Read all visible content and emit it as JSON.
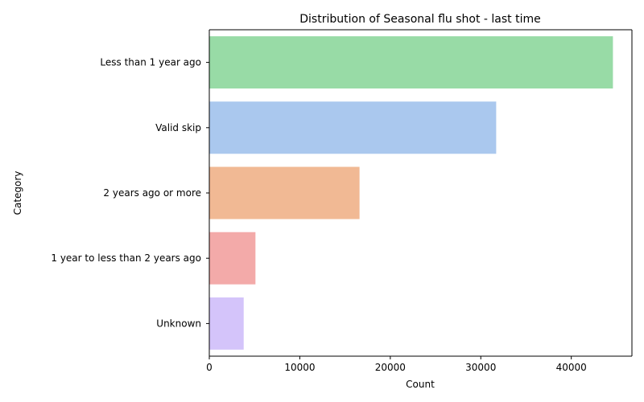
{
  "chart_data": {
    "type": "bar",
    "orientation": "horizontal",
    "title": "Distribution of Seasonal flu shot - last time",
    "xlabel": "Count",
    "ylabel": "Category",
    "categories": [
      "Less than 1 year ago",
      "Valid skip",
      "2 years ago or more",
      "1 year to less than 2 years ago",
      "Unknown"
    ],
    "values": [
      44600,
      31700,
      16600,
      5100,
      3800
    ],
    "colors": [
      "#98dba6",
      "#aac8ee",
      "#f1b994",
      "#f3aaa9",
      "#d4c4fa"
    ],
    "xlim": [
      0,
      46700
    ],
    "xticks": [
      0,
      10000,
      20000,
      30000,
      40000
    ],
    "xtick_labels": [
      "0",
      "10000",
      "20000",
      "30000",
      "40000"
    ],
    "grid": false,
    "legend": "none"
  }
}
